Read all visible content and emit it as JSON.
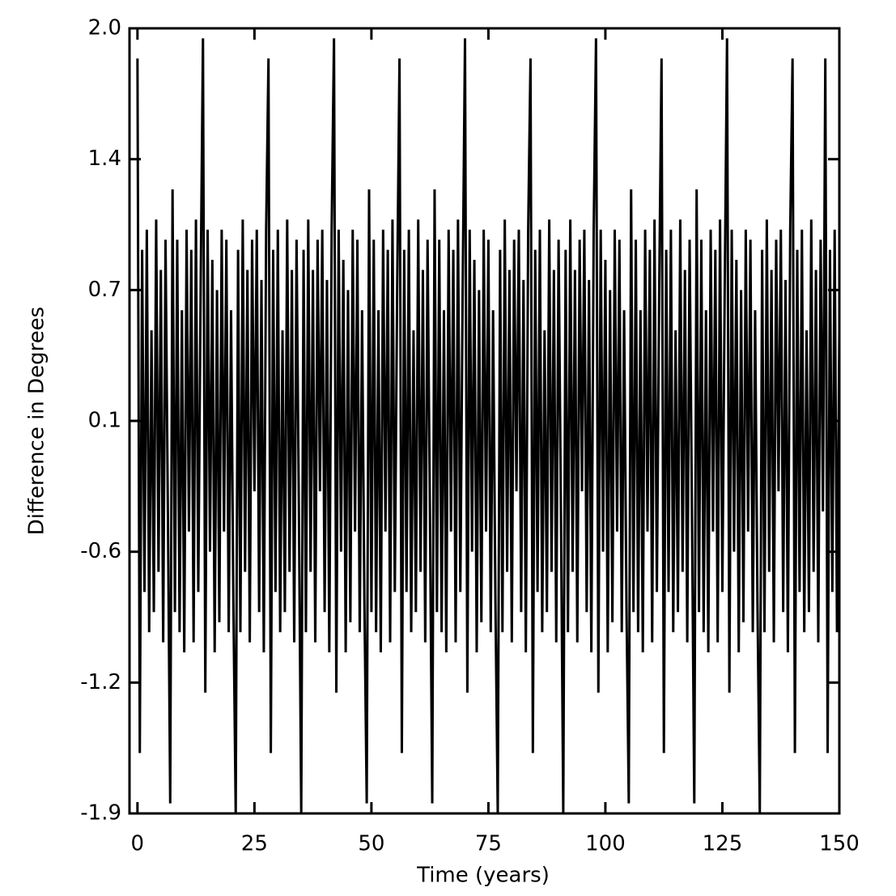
{
  "chart_data": {
    "type": "line",
    "xlabel": "Time (years)",
    "ylabel": "Difference in Degrees",
    "color": "#000000",
    "xlim": [
      -1.7,
      150
    ],
    "xticks": [
      0,
      25,
      50,
      75,
      100,
      125,
      150
    ],
    "ylim": [
      -1.9,
      2.0
    ],
    "yticks": [
      {
        "value": 2.0,
        "label": "2.0"
      },
      {
        "value": 1.35,
        "label": "1.4"
      },
      0.7,
      {
        "value": 0.05,
        "label": "0.1"
      },
      -0.6,
      {
        "value": -1.25,
        "label": "-1.2"
      },
      -1.9
    ],
    "x": [
      0,
      0.5,
      1,
      1.5,
      2,
      2.5,
      3,
      3.5,
      4,
      4.5,
      5,
      5.5,
      6,
      6.5,
      7,
      7.5,
      8,
      8.5,
      9,
      9.5,
      10,
      10.5,
      11,
      11.5,
      12,
      12.5,
      13,
      13.5,
      14,
      14.5,
      15,
      15.5,
      16,
      16.5,
      17,
      17.5,
      18,
      18.5,
      19,
      19.5,
      20,
      20.5,
      21,
      21.5,
      22,
      22.5,
      23,
      23.5,
      24,
      24.5,
      25,
      25.5,
      26,
      26.5,
      27,
      27.5,
      28,
      28.5,
      29,
      29.5,
      30,
      30.5,
      31,
      31.5,
      32,
      32.5,
      33,
      33.5,
      34,
      34.5,
      35,
      35.5,
      36,
      36.5,
      37,
      37.5,
      38,
      38.5,
      39,
      39.5,
      40,
      40.5,
      41,
      41.5,
      42,
      42.5,
      43,
      43.5,
      44,
      44.5,
      45,
      45.5,
      46,
      46.5,
      47,
      47.5,
      48,
      48.5,
      49,
      49.5,
      50,
      50.5,
      51,
      51.5,
      52,
      52.5,
      53,
      53.5,
      54,
      54.5,
      55,
      55.5,
      56,
      56.5,
      57,
      57.5,
      58,
      58.5,
      59,
      59.5,
      60,
      60.5,
      61,
      61.5,
      62,
      62.5,
      63,
      63.5,
      64,
      64.5,
      65,
      65.5,
      66,
      66.5,
      67,
      67.5,
      68,
      68.5,
      69,
      69.5,
      70,
      70.5,
      71,
      71.5,
      72,
      72.5,
      73,
      73.5,
      74,
      74.5,
      75,
      75.5,
      76,
      76.5,
      77,
      77.5,
      78,
      78.5,
      79,
      79.5,
      80,
      80.5,
      81,
      81.5,
      82,
      82.5,
      83,
      83.5,
      84,
      84.5,
      85,
      85.5,
      86,
      86.5,
      87,
      87.5,
      88,
      88.5,
      89,
      89.5,
      90,
      90.5,
      91,
      91.5,
      92,
      92.5,
      93,
      93.5,
      94,
      94.5,
      95,
      95.5,
      96,
      96.5,
      97,
      97.5,
      98,
      98.5,
      99,
      99.5,
      100,
      100.5,
      101,
      101.5,
      102,
      102.5,
      103,
      103.5,
      104,
      104.5,
      105,
      105.5,
      106,
      106.5,
      107,
      107.5,
      108,
      108.5,
      109,
      109.5,
      110,
      110.5,
      111,
      111.5,
      112,
      112.5,
      113,
      113.5,
      114,
      114.5,
      115,
      115.5,
      116,
      116.5,
      117,
      117.5,
      118,
      118.5,
      119,
      119.5,
      120,
      120.5,
      121,
      121.5,
      122,
      122.5,
      123,
      123.5,
      124,
      124.5,
      125,
      125.5,
      126,
      126.5,
      127,
      127.5,
      128,
      128.5,
      129,
      129.5,
      130,
      130.5,
      131,
      131.5,
      132,
      132.5,
      133,
      133.5,
      134,
      134.5,
      135,
      135.5,
      136,
      136.5,
      137,
      137.5,
      138,
      138.5,
      139,
      139.5,
      140,
      140.5,
      141,
      141.5,
      142,
      142.5,
      143,
      143.5,
      144,
      144.5,
      145,
      145.5,
      146,
      146.5,
      147,
      147.5,
      148,
      148.5,
      149,
      149.5,
      150
    ],
    "values": [
      1.85,
      -1.6,
      0.9,
      -0.8,
      1.0,
      -1.0,
      0.5,
      -0.9,
      1.05,
      -0.7,
      0.8,
      -1.05,
      0.95,
      -0.4,
      -1.85,
      1.2,
      -0.9,
      0.95,
      -1.0,
      0.6,
      -1.1,
      1.0,
      -0.5,
      0.9,
      -1.05,
      1.05,
      -0.8,
      0.7,
      1.95,
      -1.3,
      1.0,
      -0.6,
      0.85,
      -1.1,
      0.7,
      -0.95,
      1.0,
      -0.5,
      0.95,
      -1.0,
      0.6,
      -0.85,
      -1.9,
      0.9,
      -1.0,
      1.05,
      -0.7,
      0.8,
      -1.05,
      0.95,
      -0.3,
      1.0,
      -0.9,
      0.75,
      -1.1,
      1.0,
      1.85,
      -1.6,
      0.9,
      -0.8,
      1.0,
      -1.0,
      0.5,
      -0.9,
      1.05,
      -0.7,
      0.8,
      -1.05,
      0.95,
      -0.4,
      -1.9,
      0.9,
      -1.0,
      1.05,
      -0.7,
      0.8,
      -1.05,
      0.95,
      -0.3,
      1.0,
      -0.9,
      0.75,
      -1.1,
      1.0,
      1.95,
      -1.3,
      1.0,
      -0.6,
      0.85,
      -1.1,
      0.7,
      -0.95,
      1.0,
      -0.5,
      0.95,
      -1.0,
      0.6,
      -0.85,
      -1.85,
      1.2,
      -0.9,
      0.95,
      -1.0,
      0.6,
      -1.1,
      1.0,
      -0.5,
      0.9,
      -1.05,
      1.05,
      -0.8,
      0.7,
      1.85,
      -1.6,
      0.9,
      -0.8,
      1.0,
      -1.0,
      0.5,
      -0.9,
      1.05,
      -0.7,
      0.8,
      -1.05,
      0.95,
      -0.4,
      -1.85,
      1.2,
      -0.9,
      0.95,
      -1.0,
      0.6,
      -1.1,
      1.0,
      -0.5,
      0.9,
      -1.05,
      1.05,
      -0.8,
      0.7,
      1.95,
      -1.3,
      1.0,
      -0.6,
      0.85,
      -1.1,
      0.7,
      -0.95,
      1.0,
      -0.5,
      0.95,
      -1.0,
      0.6,
      -0.85,
      -1.9,
      0.9,
      -1.0,
      1.05,
      -0.7,
      0.8,
      -1.05,
      0.95,
      -0.3,
      1.0,
      -0.9,
      0.75,
      -1.1,
      1.0,
      1.85,
      -1.6,
      0.9,
      -0.8,
      1.0,
      -1.0,
      0.5,
      -0.9,
      1.05,
      -0.7,
      0.8,
      -1.05,
      0.95,
      -0.4,
      -1.9,
      0.9,
      -1.0,
      1.05,
      -0.7,
      0.8,
      -1.05,
      0.95,
      -0.3,
      1.0,
      -0.9,
      0.75,
      -1.1,
      1.0,
      1.95,
      -1.3,
      1.0,
      -0.6,
      0.85,
      -1.1,
      0.7,
      -0.95,
      1.0,
      -0.5,
      0.95,
      -1.0,
      0.6,
      -0.85,
      -1.85,
      1.2,
      -0.9,
      0.95,
      -1.0,
      0.6,
      -1.1,
      1.0,
      -0.5,
      0.9,
      -1.05,
      1.05,
      -0.8,
      0.7,
      1.85,
      -1.6,
      0.9,
      -0.8,
      1.0,
      -1.0,
      0.5,
      -0.9,
      1.05,
      -0.7,
      0.8,
      -1.05,
      0.95,
      -0.4,
      -1.85,
      1.2,
      -0.9,
      0.95,
      -1.0,
      0.6,
      -1.1,
      1.0,
      -0.5,
      0.9,
      -1.05,
      1.05,
      -0.8,
      0.7,
      1.95,
      -1.3,
      1.0,
      -0.6,
      0.85,
      -1.1,
      0.7,
      -0.95,
      1.0,
      -0.5,
      0.95,
      -1.0,
      0.6,
      -0.85,
      -1.9,
      0.9,
      -1.0,
      1.05,
      -0.7,
      0.8,
      -1.05,
      0.95,
      -0.3,
      1.0,
      -0.9,
      0.75,
      -1.1,
      1.0,
      1.85,
      -1.6,
      0.9,
      -0.8,
      1.0,
      -1.0,
      0.5,
      -0.9,
      1.05,
      -0.7,
      0.8,
      -1.05,
      0.95,
      -0.4,
      1.85,
      -1.6,
      0.9,
      -0.8,
      1.0,
      -1.0,
      0.5
    ]
  }
}
